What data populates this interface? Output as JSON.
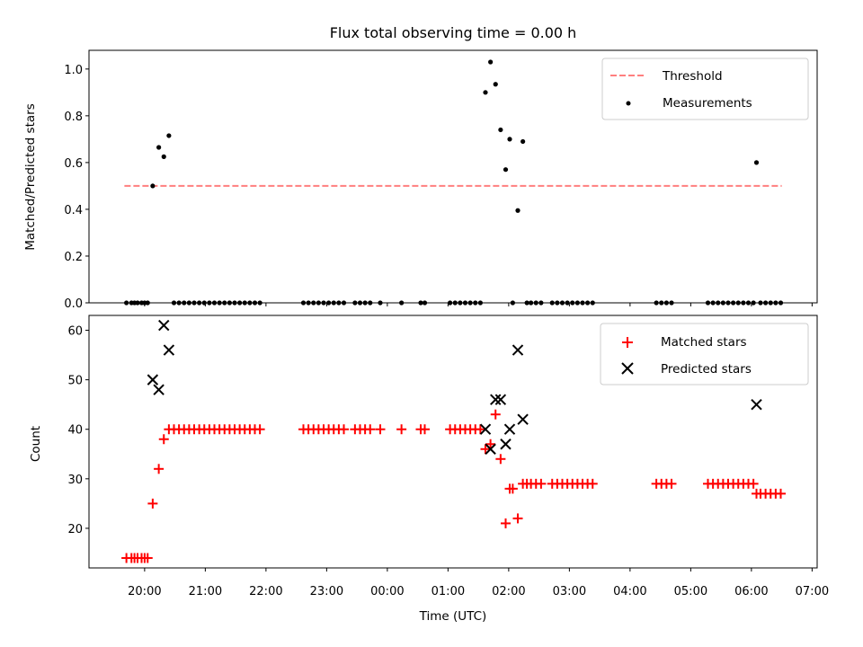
{
  "chart_data": [
    {
      "type": "scatter",
      "title": "Flux total observing time = 0.00 h",
      "ylabel": "Matched/Predicted stars",
      "xlabel": "",
      "ylim": [
        0,
        1.08
      ],
      "yticks": [
        "0.0",
        "0.2",
        "0.4",
        "0.6",
        "0.8",
        "1.0"
      ],
      "legend_position": "top-right",
      "threshold": {
        "name": "Threshold",
        "value": 0.5,
        "x_range": [
          "19:40",
          "06:30"
        ],
        "color": "#ff7f7f",
        "style": "dashed"
      },
      "series": [
        {
          "name": "Measurements",
          "color": "#000000",
          "marker": "dot",
          "points": [
            [
              "19:42",
              0
            ],
            [
              "19:47",
              0
            ],
            [
              "19:50",
              0
            ],
            [
              "19:53",
              0
            ],
            [
              "19:57",
              0
            ],
            [
              "20:00",
              0
            ],
            [
              "20:03",
              0
            ],
            [
              "20:08",
              0.5
            ],
            [
              "20:14",
              0.665
            ],
            [
              "20:19",
              0.625
            ],
            [
              "20:24",
              0.715
            ],
            [
              "20:29",
              0
            ],
            [
              "20:34",
              0
            ],
            [
              "20:39",
              0
            ],
            [
              "20:44",
              0
            ],
            [
              "20:49",
              0
            ],
            [
              "20:54",
              0
            ],
            [
              "20:59",
              0
            ],
            [
              "21:04",
              0
            ],
            [
              "21:09",
              0
            ],
            [
              "21:14",
              0
            ],
            [
              "21:19",
              0
            ],
            [
              "21:24",
              0
            ],
            [
              "21:29",
              0
            ],
            [
              "21:34",
              0
            ],
            [
              "21:39",
              0
            ],
            [
              "21:44",
              0
            ],
            [
              "21:49",
              0
            ],
            [
              "21:54",
              0
            ],
            [
              "22:37",
              0
            ],
            [
              "22:42",
              0
            ],
            [
              "22:47",
              0
            ],
            [
              "22:52",
              0
            ],
            [
              "22:57",
              0
            ],
            [
              "23:02",
              0
            ],
            [
              "23:07",
              0
            ],
            [
              "23:12",
              0
            ],
            [
              "23:17",
              0
            ],
            [
              "23:28",
              0
            ],
            [
              "23:33",
              0
            ],
            [
              "23:38",
              0
            ],
            [
              "23:43",
              0
            ],
            [
              "23:53",
              0
            ],
            [
              "00:14",
              0
            ],
            [
              "00:33",
              0
            ],
            [
              "00:37",
              0
            ],
            [
              "01:02",
              0
            ],
            [
              "01:07",
              0
            ],
            [
              "01:12",
              0
            ],
            [
              "01:17",
              0
            ],
            [
              "01:22",
              0
            ],
            [
              "01:27",
              0
            ],
            [
              "01:32",
              0
            ],
            [
              "01:37",
              0.9
            ],
            [
              "01:42",
              1.03
            ],
            [
              "01:47",
              0.935
            ],
            [
              "01:52",
              0.74
            ],
            [
              "01:57",
              0.57
            ],
            [
              "02:01",
              0.7
            ],
            [
              "02:04",
              0
            ],
            [
              "02:09",
              0.395
            ],
            [
              "02:14",
              0.69
            ],
            [
              "02:18",
              0
            ],
            [
              "02:22",
              0
            ],
            [
              "02:27",
              0
            ],
            [
              "02:32",
              0
            ],
            [
              "02:43",
              0
            ],
            [
              "02:48",
              0
            ],
            [
              "02:53",
              0
            ],
            [
              "02:58",
              0
            ],
            [
              "03:03",
              0
            ],
            [
              "03:08",
              0
            ],
            [
              "03:13",
              0
            ],
            [
              "03:18",
              0
            ],
            [
              "03:23",
              0
            ],
            [
              "04:26",
              0
            ],
            [
              "04:31",
              0
            ],
            [
              "04:36",
              0
            ],
            [
              "04:41",
              0
            ],
            [
              "05:17",
              0
            ],
            [
              "05:22",
              0
            ],
            [
              "05:27",
              0
            ],
            [
              "05:32",
              0
            ],
            [
              "05:37",
              0
            ],
            [
              "05:42",
              0
            ],
            [
              "05:47",
              0
            ],
            [
              "05:52",
              0
            ],
            [
              "05:57",
              0
            ],
            [
              "06:02",
              0
            ],
            [
              "06:05",
              0.6
            ],
            [
              "06:09",
              0
            ],
            [
              "06:14",
              0
            ],
            [
              "06:19",
              0
            ],
            [
              "06:24",
              0
            ],
            [
              "06:29",
              0
            ]
          ]
        }
      ]
    },
    {
      "type": "scatter",
      "title": "",
      "ylabel": "Count",
      "xlabel": "Time (UTC)",
      "ylim": [
        12,
        63
      ],
      "yticks": [
        "20",
        "30",
        "40",
        "50",
        "60"
      ],
      "xlim": [
        "19:05",
        "07:05"
      ],
      "xticks": [
        "20:00",
        "21:00",
        "22:00",
        "23:00",
        "00:00",
        "01:00",
        "02:00",
        "03:00",
        "04:00",
        "05:00",
        "06:00",
        "07:00"
      ],
      "legend_position": "top-right",
      "series": [
        {
          "name": "Matched stars",
          "color": "#ff0000",
          "marker": "plus",
          "points": [
            [
              "19:42",
              14
            ],
            [
              "19:47",
              14
            ],
            [
              "19:50",
              14
            ],
            [
              "19:53",
              14
            ],
            [
              "19:57",
              14
            ],
            [
              "20:00",
              14
            ],
            [
              "20:03",
              14
            ],
            [
              "20:08",
              25
            ],
            [
              "20:14",
              32
            ],
            [
              "20:19",
              38
            ],
            [
              "20:24",
              40
            ],
            [
              "20:29",
              40
            ],
            [
              "20:34",
              40
            ],
            [
              "20:39",
              40
            ],
            [
              "20:44",
              40
            ],
            [
              "20:49",
              40
            ],
            [
              "20:54",
              40
            ],
            [
              "20:59",
              40
            ],
            [
              "21:04",
              40
            ],
            [
              "21:09",
              40
            ],
            [
              "21:14",
              40
            ],
            [
              "21:19",
              40
            ],
            [
              "21:24",
              40
            ],
            [
              "21:29",
              40
            ],
            [
              "21:34",
              40
            ],
            [
              "21:39",
              40
            ],
            [
              "21:44",
              40
            ],
            [
              "21:49",
              40
            ],
            [
              "21:54",
              40
            ],
            [
              "22:37",
              40
            ],
            [
              "22:42",
              40
            ],
            [
              "22:47",
              40
            ],
            [
              "22:52",
              40
            ],
            [
              "22:57",
              40
            ],
            [
              "23:02",
              40
            ],
            [
              "23:07",
              40
            ],
            [
              "23:12",
              40
            ],
            [
              "23:17",
              40
            ],
            [
              "23:28",
              40
            ],
            [
              "23:33",
              40
            ],
            [
              "23:38",
              40
            ],
            [
              "23:43",
              40
            ],
            [
              "23:53",
              40
            ],
            [
              "00:14",
              40
            ],
            [
              "00:33",
              40
            ],
            [
              "00:37",
              40
            ],
            [
              "01:02",
              40
            ],
            [
              "01:07",
              40
            ],
            [
              "01:12",
              40
            ],
            [
              "01:17",
              40
            ],
            [
              "01:22",
              40
            ],
            [
              "01:27",
              40
            ],
            [
              "01:32",
              40
            ],
            [
              "01:37",
              36
            ],
            [
              "01:42",
              37
            ],
            [
              "01:47",
              43
            ],
            [
              "01:52",
              34
            ],
            [
              "01:57",
              21
            ],
            [
              "02:01",
              28
            ],
            [
              "02:04",
              28
            ],
            [
              "02:09",
              22
            ],
            [
              "02:14",
              29
            ],
            [
              "02:18",
              29
            ],
            [
              "02:22",
              29
            ],
            [
              "02:27",
              29
            ],
            [
              "02:32",
              29
            ],
            [
              "02:43",
              29
            ],
            [
              "02:48",
              29
            ],
            [
              "02:53",
              29
            ],
            [
              "02:58",
              29
            ],
            [
              "03:03",
              29
            ],
            [
              "03:08",
              29
            ],
            [
              "03:13",
              29
            ],
            [
              "03:18",
              29
            ],
            [
              "03:23",
              29
            ],
            [
              "04:26",
              29
            ],
            [
              "04:31",
              29
            ],
            [
              "04:36",
              29
            ],
            [
              "04:41",
              29
            ],
            [
              "05:17",
              29
            ],
            [
              "05:22",
              29
            ],
            [
              "05:27",
              29
            ],
            [
              "05:32",
              29
            ],
            [
              "05:37",
              29
            ],
            [
              "05:42",
              29
            ],
            [
              "05:47",
              29
            ],
            [
              "05:52",
              29
            ],
            [
              "05:57",
              29
            ],
            [
              "06:02",
              29
            ],
            [
              "06:05",
              27
            ],
            [
              "06:09",
              27
            ],
            [
              "06:14",
              27
            ],
            [
              "06:19",
              27
            ],
            [
              "06:24",
              27
            ],
            [
              "06:29",
              27
            ]
          ]
        },
        {
          "name": "Predicted stars",
          "color": "#000000",
          "marker": "x",
          "points": [
            [
              "20:08",
              50
            ],
            [
              "20:14",
              48
            ],
            [
              "20:19",
              61
            ],
            [
              "20:24",
              56
            ],
            [
              "01:37",
              40
            ],
            [
              "01:42",
              36
            ],
            [
              "01:47",
              46
            ],
            [
              "01:52",
              46
            ],
            [
              "01:57",
              37
            ],
            [
              "02:01",
              40
            ],
            [
              "02:09",
              56
            ],
            [
              "02:14",
              42
            ],
            [
              "06:05",
              45
            ]
          ]
        }
      ]
    }
  ]
}
